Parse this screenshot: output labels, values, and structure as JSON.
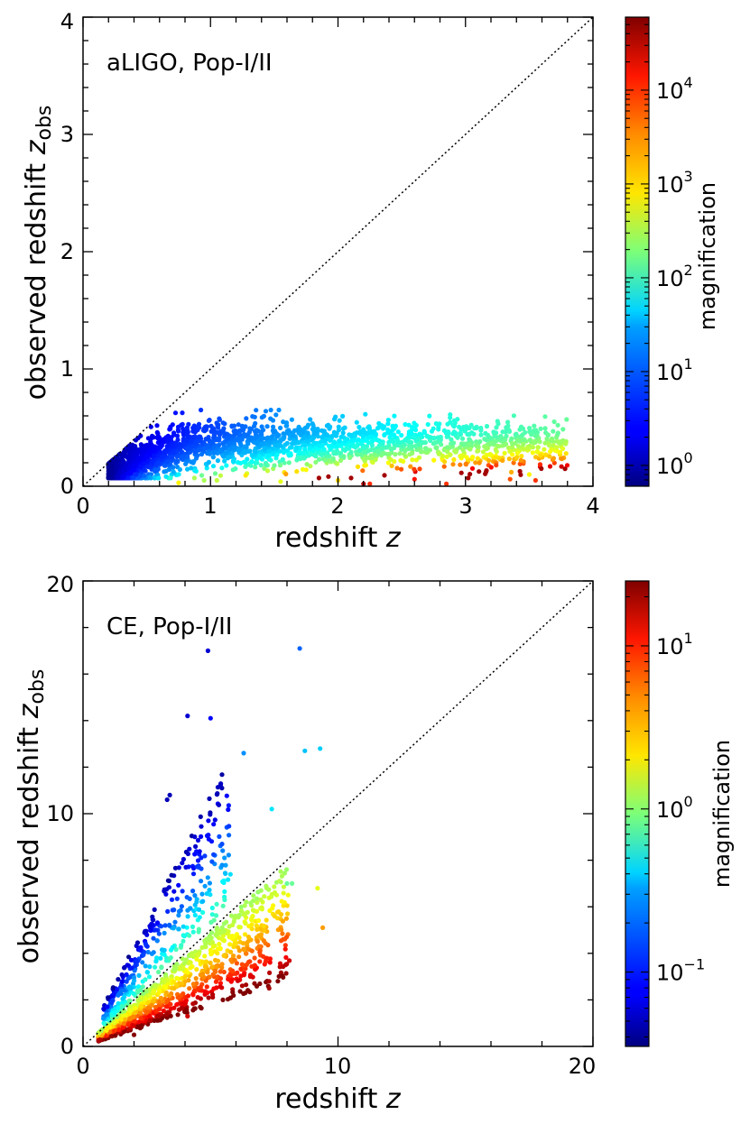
{
  "chart_data": [
    {
      "type": "scatter",
      "annotation": "aLIGO, Pop-I/II",
      "xlabel": "redshift",
      "xlabel_symbol": "z",
      "ylabel": "observed redshift",
      "ylabel_symbol": "z",
      "ylabel_subscript": "obs",
      "xlim": [
        0,
        4
      ],
      "ylim": [
        0,
        4
      ],
      "xticks": [
        "0",
        "1",
        "2",
        "3",
        "4"
      ],
      "yticks": [
        "0",
        "1",
        "2",
        "3",
        "4"
      ],
      "reference_line": "y = x",
      "grid": false,
      "colorbar": {
        "label": "magnification",
        "scale": "log",
        "range": [
          0.6,
          60000
        ],
        "colormap": "jet",
        "ticks": [
          {
            "base": "10",
            "exp": "0"
          },
          {
            "base": "10",
            "exp": "1"
          },
          {
            "base": "10",
            "exp": "2"
          },
          {
            "base": "10",
            "exp": "3"
          },
          {
            "base": "10",
            "exp": "4"
          }
        ]
      },
      "points": {
        "description_count": 2500,
        "x_range": [
          0.2,
          3.8
        ],
        "y_range": [
          0.05,
          0.65
        ],
        "trend": "dense cloud rising to z_obs≈0.35 near z≈0.8 then flattening; magnification increases with z and low z_obs"
      }
    },
    {
      "type": "scatter",
      "annotation": "CE, Pop-I/II",
      "xlabel": "redshift",
      "xlabel_symbol": "z",
      "ylabel": "observed redshift",
      "ylabel_symbol": "z",
      "ylabel_subscript": "obs",
      "xlim": [
        0,
        20
      ],
      "ylim": [
        0,
        20
      ],
      "xticks": [
        "0",
        "10",
        "20"
      ],
      "yticks": [
        "0",
        "10",
        "20"
      ],
      "reference_line": "y = x",
      "grid": false,
      "colorbar": {
        "label": "magnification",
        "scale": "log",
        "range": [
          0.035,
          25
        ],
        "colormap": "jet",
        "ticks": [
          {
            "base": "10",
            "exp": "−1"
          },
          {
            "base": "10",
            "exp": "0"
          },
          {
            "base": "10",
            "exp": "1"
          }
        ]
      },
      "points": {
        "description_count": 1400,
        "x_range": [
          0.6,
          9.5
        ],
        "y_range": [
          0.3,
          17.1
        ],
        "trend": "demagnified (blue) events above diagonal reaching z_obs≈17; magnified (yellow-red) events below diagonal"
      }
    }
  ]
}
